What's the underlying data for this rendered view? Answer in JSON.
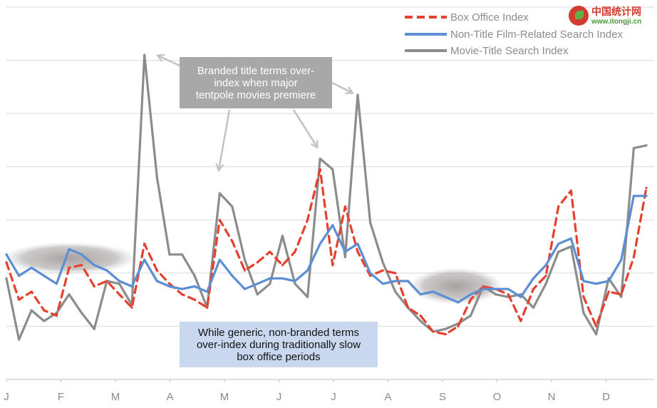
{
  "logo": {
    "cn": "中国统计网",
    "url": "www.itongji.cn"
  },
  "annotations": {
    "branded": "Branded title terms over-\nindex when major\ntentpole movies premiere",
    "generic": "While generic, non-branded terms\nover-index during traditionally slow\nbox office periods"
  },
  "chart_data": {
    "type": "line",
    "title": "",
    "xlabel": "",
    "ylabel": "",
    "x_tick_labels": [
      "J",
      "F",
      "M",
      "A",
      "M",
      "J",
      "J",
      "A",
      "S",
      "O",
      "N",
      "D"
    ],
    "x_unit": "week",
    "x": [
      1,
      2,
      3,
      4,
      5,
      6,
      7,
      8,
      9,
      10,
      11,
      12,
      13,
      14,
      15,
      16,
      17,
      18,
      19,
      20,
      21,
      22,
      23,
      24,
      25,
      26,
      27,
      28,
      29,
      30,
      31,
      32,
      33,
      34,
      35,
      36,
      37,
      38,
      39,
      40,
      41,
      42,
      43,
      44,
      45,
      46,
      47,
      48,
      49,
      50,
      51,
      52
    ],
    "ylim": [
      0,
      7
    ],
    "grid": "horizontal",
    "legend": {
      "position": "top-right"
    },
    "series": [
      {
        "name": "Box Office Index",
        "color": "#e5412e",
        "style": "dashed",
        "values": [
          2.2,
          1.5,
          1.65,
          1.3,
          1.2,
          2.1,
          2.15,
          1.75,
          1.85,
          1.6,
          1.35,
          2.55,
          2.05,
          1.8,
          1.6,
          1.5,
          1.35,
          3.0,
          2.6,
          2.05,
          2.2,
          2.4,
          2.15,
          2.4,
          3.0,
          3.95,
          2.15,
          3.25,
          2.4,
          1.95,
          2.05,
          2.0,
          1.35,
          1.2,
          0.9,
          0.85,
          1.0,
          1.5,
          1.75,
          1.7,
          1.6,
          1.1,
          1.7,
          1.95,
          3.25,
          3.55,
          1.55,
          1.0,
          1.65,
          1.6,
          2.3,
          3.6
        ]
      },
      {
        "name": "Non-Title Film-Related Search Index",
        "color": "#5b8ed4",
        "style": "solid",
        "values": [
          2.35,
          1.95,
          2.1,
          1.95,
          1.8,
          2.45,
          2.35,
          2.15,
          2.05,
          1.85,
          1.75,
          2.25,
          1.85,
          1.75,
          1.7,
          1.75,
          1.65,
          2.25,
          1.95,
          1.7,
          1.8,
          1.9,
          1.9,
          1.85,
          2.05,
          2.55,
          2.9,
          2.4,
          2.55,
          2.0,
          1.8,
          1.85,
          1.85,
          1.6,
          1.65,
          1.55,
          1.45,
          1.6,
          1.7,
          1.7,
          1.7,
          1.55,
          1.9,
          2.15,
          2.55,
          2.65,
          1.85,
          1.8,
          1.85,
          2.25,
          3.45,
          3.45
        ]
      },
      {
        "name": "Movie-Title Search Index",
        "color": "#8c8c8c",
        "style": "solid",
        "values": [
          1.9,
          0.75,
          1.3,
          1.1,
          1.25,
          1.6,
          1.25,
          0.95,
          1.85,
          1.8,
          1.4,
          6.1,
          3.8,
          2.35,
          2.35,
          1.95,
          1.35,
          3.5,
          3.25,
          2.25,
          1.6,
          1.8,
          2.7,
          1.8,
          1.55,
          4.15,
          3.95,
          2.3,
          5.35,
          2.95,
          2.2,
          1.65,
          1.35,
          1.1,
          0.9,
          0.95,
          1.05,
          1.2,
          1.75,
          1.6,
          1.55,
          1.6,
          1.35,
          1.8,
          2.4,
          2.5,
          1.25,
          0.85,
          1.9,
          1.55,
          4.35,
          4.4
        ]
      }
    ]
  }
}
